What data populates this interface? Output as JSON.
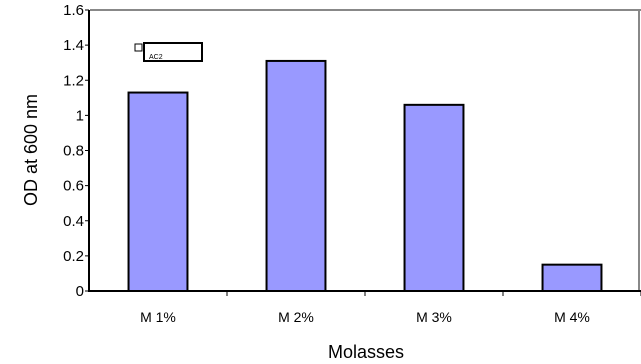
{
  "chart_data": {
    "type": "bar",
    "categories": [
      "M 1%",
      "M 2%",
      "M 3%",
      "M 4%"
    ],
    "values": [
      1.13,
      1.31,
      1.06,
      0.15
    ],
    "xlabel": "Molasses",
    "ylabel": "OD at 600 nm",
    "ylim": [
      0,
      1.6
    ],
    "yticks": [
      0,
      0.2,
      0.4,
      0.6,
      0.8,
      1,
      1.2,
      1.4,
      1.6
    ],
    "ytick_labels": [
      "0",
      "0.2",
      "0.4",
      "0.6",
      "0.8",
      "1",
      "1.2",
      "1.4",
      "1.6"
    ],
    "legend": {
      "label": "AC2",
      "placement": "top-left"
    },
    "colors": {
      "bar_fill": "#9999ff",
      "bar_stroke": "#000000",
      "axis": "#000000",
      "frame": "#888888"
    },
    "grid": false
  }
}
